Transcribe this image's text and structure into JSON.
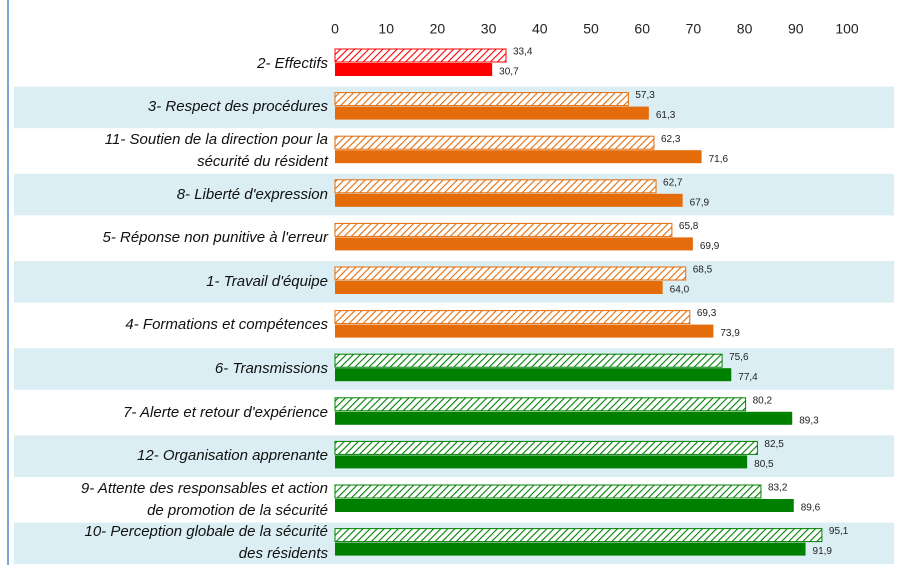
{
  "chart_data": {
    "type": "bar",
    "orientation": "horizontal",
    "categories": [
      "2- Effectifs",
      "3- Respect des procédures",
      "11- Soutien de la direction pour la\nsécurité du résident",
      "8- Liberté d'expression",
      "5- Réponse non punitive à l'erreur",
      "1- Travail d'équipe",
      "4- Formations et compétences",
      "6- Transmissions",
      "7- Alerte et retour d'expérience",
      "12- Organisation apprenante",
      "9- Attente des responsables et action\nde promotion de la sécurité",
      "10- Perception globale de la sécurité\ndes résidents"
    ],
    "category_colors": [
      "#ff0000",
      "#e46c0a",
      "#e46c0a",
      "#e46c0a",
      "#e46c0a",
      "#e46c0a",
      "#e46c0a",
      "#008000",
      "#008000",
      "#008000",
      "#008000",
      "#008000"
    ],
    "series": [
      {
        "pattern": "hatched",
        "values": [
          33.4,
          57.3,
          62.3,
          62.7,
          65.8,
          68.5,
          69.3,
          75.6,
          80.2,
          82.5,
          83.2,
          95.1
        ],
        "value_labels": [
          "33,4",
          "57,3",
          "62,3",
          "62,7",
          "65,8",
          "68,5",
          "69,3",
          "75,6",
          "80,2",
          "82,5",
          "83,2",
          "95,1"
        ]
      },
      {
        "pattern": "solid",
        "values": [
          30.7,
          61.3,
          71.6,
          67.9,
          69.9,
          64.0,
          73.9,
          77.4,
          89.3,
          80.5,
          89.6,
          91.9
        ],
        "value_labels": [
          "30,7",
          "61,3",
          "71,6",
          "67,9",
          "69,9",
          "64,0",
          "73,9",
          "77,4",
          "89,3",
          "80,5",
          "89,6",
          "91,9"
        ]
      }
    ],
    "xlim": [
      0,
      100
    ],
    "xticks": [
      0,
      10,
      20,
      30,
      40,
      50,
      60,
      70,
      80,
      90,
      100
    ],
    "grid": false
  }
}
